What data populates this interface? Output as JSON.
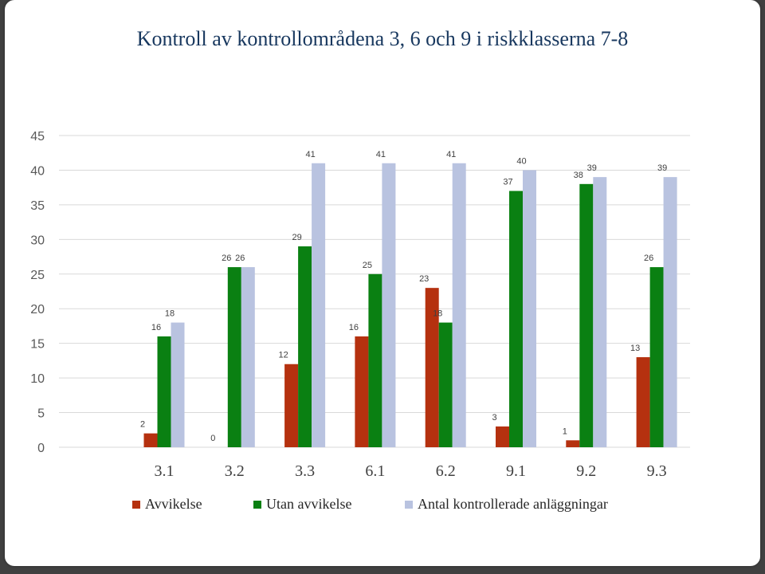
{
  "title": "Kontroll av kontrollområdena 3, 6 och 9 i riskklasserna 7-8",
  "chart_data": {
    "type": "bar",
    "title": "Kontroll av kontrollområdena 3, 6 och 9 i riskklasserna 7-8",
    "xlabel": "",
    "ylabel": "",
    "categories": [
      "3.1",
      "3.2",
      "3.3",
      "6.1",
      "6.2",
      "9.1",
      "9.2",
      "9.3"
    ],
    "ylim": [
      0,
      45
    ],
    "yticks": [
      0,
      5,
      10,
      15,
      20,
      25,
      30,
      35,
      40,
      45
    ],
    "grid": true,
    "legend_position": "bottom",
    "series": [
      {
        "name": "Avvikelse",
        "color": "#b5310f",
        "values": [
          2,
          0,
          12,
          16,
          23,
          3,
          1,
          13
        ]
      },
      {
        "name": "Utan avvikelse",
        "color": "#0a8012",
        "values": [
          16,
          26,
          29,
          25,
          18,
          37,
          38,
          26
        ]
      },
      {
        "name": "Antal kontrollerade anläggningar",
        "color": "#b9c3e0",
        "values": [
          18,
          26,
          41,
          41,
          41,
          40,
          39,
          39
        ]
      }
    ]
  }
}
